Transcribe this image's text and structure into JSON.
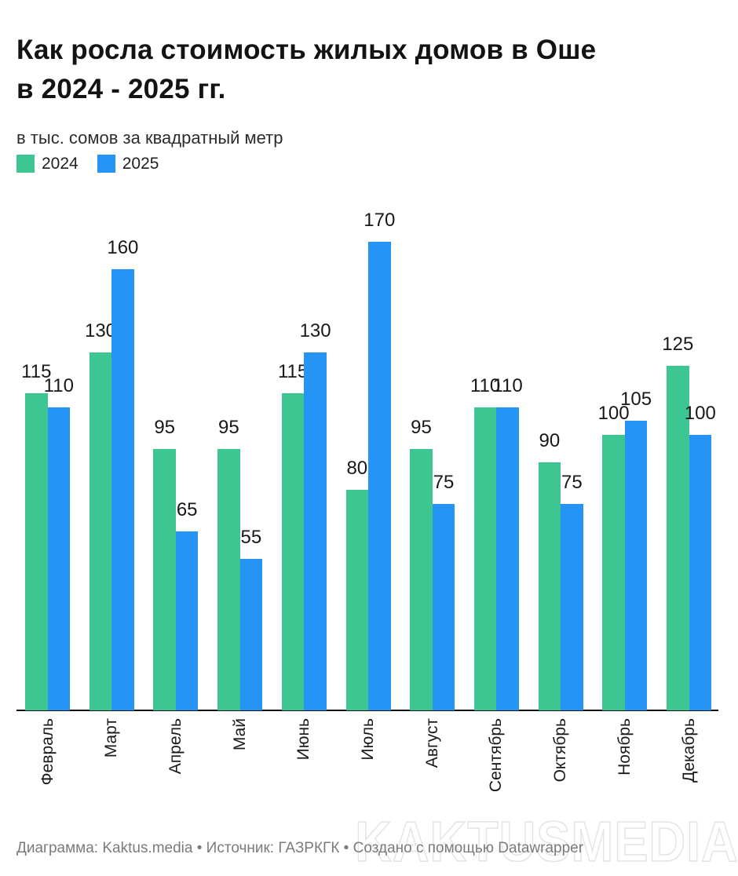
{
  "header": {
    "title": "Как росла стоимость жилых домов в Оше в 2024 - 2025 гг.",
    "title_lines": [
      "Как росла стоимость жилых домов в Оше",
      "в 2024 - 2025 гг."
    ],
    "subtitle": "в тыс. сомов за квадратный метр"
  },
  "legend": {
    "items": [
      {
        "label": "2024",
        "color": "#3ec692"
      },
      {
        "label": "2025",
        "color": "#2694f4"
      }
    ]
  },
  "chart_data": {
    "type": "bar",
    "title": "Как росла стоимость жилых домов в Оше в 2024 - 2025 гг.",
    "subtitle": "в тыс. сомов за квадратный метр",
    "categories": [
      "Февраль",
      "Март",
      "Апрель",
      "Май",
      "Июнь",
      "Июль",
      "Август",
      "Сентябрь",
      "Октябрь",
      "Ноябрь",
      "Декабрь"
    ],
    "series": [
      {
        "name": "2024",
        "color": "#3ec692",
        "values": [
          115,
          130,
          95,
          95,
          115,
          80,
          95,
          110,
          90,
          100,
          125
        ]
      },
      {
        "name": "2025",
        "color": "#2694f4",
        "values": [
          110,
          160,
          65,
          55,
          130,
          170,
          75,
          110,
          75,
          105,
          100
        ]
      }
    ],
    "xlabel": "",
    "ylabel": "в тыс. сомов за квадратный метр",
    "ylim": [
      0,
      180
    ],
    "grid": false,
    "legend_position": "top-left",
    "value_labels": true,
    "x_tick_rotation": 90
  },
  "footer": {
    "text": "Диаграмма: Kaktus.media • Источник: ГАЗРКГК • Создано с помощью Datawrapper"
  },
  "watermark": {
    "text": "KAKTUSMEDIA"
  }
}
